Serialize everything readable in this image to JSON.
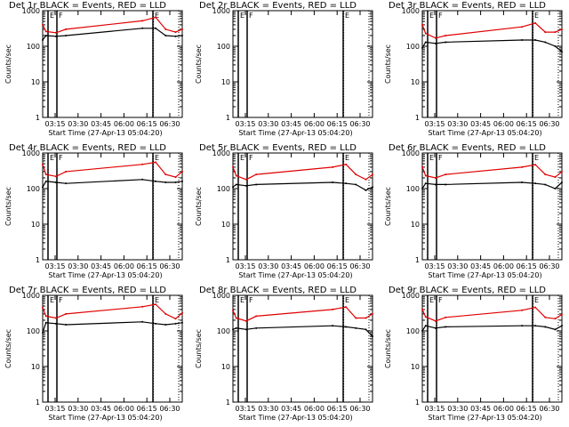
{
  "colors": {
    "events": "#000000",
    "lld": "#e00000",
    "background": "#ffffff",
    "axis": "#000000"
  },
  "chart_data": [
    {
      "type": "line",
      "title": "Det 1r BLACK = Events, RED = LLD",
      "xlabel": "Start Time (27-Apr-13 05:04:20)",
      "ylabel": "Counts/sec",
      "yscale": "log",
      "ylim": [
        1,
        1000
      ],
      "xlim": [
        "03:10",
        "06:40"
      ],
      "xticks": [
        "03:15",
        "03:30",
        "03:45",
        "06:00",
        "06:15",
        "06:30"
      ],
      "yticks": [
        "1",
        "10",
        "100",
        "1000"
      ],
      "grid": false,
      "markers": [
        "E",
        "F",
        "E"
      ],
      "x": [
        "03:10",
        "03:15",
        "03:30",
        "03:45",
        "05:40",
        "06:00",
        "06:15",
        "06:30",
        "06:40"
      ],
      "series": [
        {
          "name": "BLACK = Events",
          "values": [
            150,
            200,
            190,
            200,
            320,
            320,
            200,
            190,
            200
          ]
        },
        {
          "name": "RED = LLD",
          "values": [
            400,
            260,
            240,
            300,
            520,
            650,
            300,
            250,
            300
          ]
        }
      ]
    },
    {
      "type": "line",
      "title": "Det 2r BLACK = Events, RED = LLD",
      "xlabel": "Start Time (27-Apr-13 05:04:20)",
      "ylabel": "Counts/sec",
      "yscale": "log",
      "ylim": [
        1,
        1000
      ],
      "xlim": [
        "03:10",
        "06:40"
      ],
      "xticks": [
        "03:15",
        "03:30",
        "03:45",
        "06:00",
        "06:15",
        "06:30"
      ],
      "yticks": [
        "1",
        "10",
        "100",
        "1000"
      ],
      "grid": false,
      "markers": [
        "E",
        "F",
        "E"
      ],
      "x": [],
      "series": []
    },
    {
      "type": "line",
      "title": "Det 3r BLACK = Events, RED = LLD",
      "xlabel": "Start Time (27-Apr-13 05:04:20)",
      "ylabel": "Counts/sec",
      "yscale": "log",
      "ylim": [
        1,
        1000
      ],
      "xlim": [
        "03:10",
        "06:40"
      ],
      "xticks": [
        "03:15",
        "03:30",
        "03:45",
        "06:00",
        "06:15",
        "06:30"
      ],
      "yticks": [
        "1",
        "10",
        "100",
        "1000"
      ],
      "grid": false,
      "markers": [
        "E",
        "F",
        "E"
      ],
      "x": [
        "03:10",
        "03:15",
        "03:30",
        "03:45",
        "05:40",
        "06:00",
        "06:15",
        "06:30",
        "06:40"
      ],
      "series": [
        {
          "name": "BLACK = Events",
          "values": [
            90,
            130,
            120,
            130,
            150,
            150,
            130,
            100,
            70
          ]
        },
        {
          "name": "RED = LLD",
          "values": [
            400,
            230,
            170,
            200,
            350,
            450,
            250,
            250,
            300
          ]
        }
      ]
    },
    {
      "type": "line",
      "title": "Det 4r BLACK = Events, RED = LLD",
      "xlabel": "Start Time (27-Apr-13 05:04:20)",
      "ylabel": "Counts/sec",
      "yscale": "log",
      "ylim": [
        1,
        1000
      ],
      "xlim": [
        "03:10",
        "06:40"
      ],
      "xticks": [
        "03:15",
        "03:30",
        "03:45",
        "06:00",
        "06:15",
        "06:30"
      ],
      "yticks": [
        "1",
        "10",
        "100",
        "1000"
      ],
      "grid": false,
      "markers": [
        "E",
        "F",
        "E"
      ],
      "x": [
        "03:10",
        "03:15",
        "03:30",
        "03:45",
        "05:40",
        "06:00",
        "06:15",
        "06:30",
        "06:40"
      ],
      "series": [
        {
          "name": "BLACK = Events",
          "values": [
            110,
            160,
            150,
            140,
            180,
            160,
            150,
            150,
            160
          ]
        },
        {
          "name": "RED = LLD",
          "values": [
            480,
            250,
            220,
            300,
            480,
            550,
            250,
            210,
            300
          ]
        }
      ]
    },
    {
      "type": "line",
      "title": "Det 5r BLACK = Events, RED = LLD",
      "xlabel": "Start Time (27-Apr-13 05:04:20)",
      "ylabel": "Counts/sec",
      "yscale": "log",
      "ylim": [
        1,
        1000
      ],
      "xlim": [
        "03:10",
        "06:40"
      ],
      "xticks": [
        "03:15",
        "03:30",
        "03:45",
        "06:00",
        "06:15",
        "06:30"
      ],
      "yticks": [
        "1",
        "10",
        "100",
        "1000"
      ],
      "grid": false,
      "markers": [
        "E",
        "F",
        "E"
      ],
      "x": [
        "03:10",
        "03:15",
        "03:30",
        "03:45",
        "05:40",
        "06:00",
        "06:15",
        "06:30",
        "06:40"
      ],
      "series": [
        {
          "name": "BLACK = Events",
          "values": [
            110,
            130,
            120,
            130,
            150,
            140,
            130,
            90,
            110
          ]
        },
        {
          "name": "RED = LLD",
          "values": [
            400,
            230,
            180,
            250,
            400,
            480,
            250,
            180,
            250
          ]
        }
      ]
    },
    {
      "type": "line",
      "title": "Det 6r BLACK = Events, RED = LLD",
      "xlabel": "Start Time (27-Apr-13 05:04:20)",
      "ylabel": "Counts/sec",
      "yscale": "log",
      "ylim": [
        1,
        1000
      ],
      "xlim": [
        "03:10",
        "06:40"
      ],
      "xticks": [
        "03:15",
        "03:30",
        "03:45",
        "06:00",
        "06:15",
        "06:30"
      ],
      "yticks": [
        "1",
        "10",
        "100",
        "1000"
      ],
      "grid": false,
      "markers": [
        "E",
        "F",
        "E"
      ],
      "x": [
        "03:10",
        "03:15",
        "03:30",
        "03:45",
        "05:40",
        "06:00",
        "06:15",
        "06:30",
        "06:40"
      ],
      "series": [
        {
          "name": "BLACK = Events",
          "values": [
            100,
            140,
            130,
            130,
            150,
            140,
            130,
            100,
            150
          ]
        },
        {
          "name": "RED = LLD",
          "values": [
            400,
            230,
            200,
            250,
            400,
            470,
            250,
            210,
            300
          ]
        }
      ]
    },
    {
      "type": "line",
      "title": "Det 7r BLACK = Events, RED = LLD",
      "xlabel": "Start Time (27-Apr-13 05:04:20)",
      "ylabel": "Counts/sec",
      "yscale": "log",
      "ylim": [
        1,
        1000
      ],
      "xlim": [
        "03:10",
        "06:40"
      ],
      "xticks": [
        "03:15",
        "03:30",
        "03:45",
        "06:00",
        "06:15",
        "06:30"
      ],
      "yticks": [
        "1",
        "10",
        "100",
        "1000"
      ],
      "grid": false,
      "markers": [
        "E",
        "F",
        "E"
      ],
      "x": [
        "03:10",
        "03:15",
        "03:30",
        "03:45",
        "05:40",
        "06:00",
        "06:15",
        "06:30",
        "06:40"
      ],
      "series": [
        {
          "name": "BLACK = Events",
          "values": [
            90,
            170,
            160,
            150,
            180,
            160,
            150,
            160,
            170
          ]
        },
        {
          "name": "RED = LLD",
          "values": [
            450,
            260,
            230,
            300,
            480,
            560,
            300,
            220,
            320
          ]
        }
      ]
    },
    {
      "type": "line",
      "title": "Det 8r BLACK = Events, RED = LLD",
      "xlabel": "Start Time (27-Apr-13 05:04:20)",
      "ylabel": "Counts/sec",
      "yscale": "log",
      "ylim": [
        1,
        1000
      ],
      "xlim": [
        "03:10",
        "06:40"
      ],
      "xticks": [
        "03:15",
        "03:30",
        "03:45",
        "06:00",
        "06:15",
        "06:30"
      ],
      "yticks": [
        "1",
        "10",
        "100",
        "1000"
      ],
      "grid": false,
      "markers": [
        "E",
        "F",
        "E"
      ],
      "x": [
        "03:10",
        "03:15",
        "03:30",
        "03:45",
        "05:40",
        "06:00",
        "06:15",
        "06:30",
        "06:40"
      ],
      "series": [
        {
          "name": "BLACK = Events",
          "values": [
            110,
            120,
            110,
            120,
            140,
            130,
            120,
            110,
            70
          ]
        },
        {
          "name": "RED = LLD",
          "values": [
            380,
            230,
            190,
            260,
            400,
            470,
            230,
            230,
            300
          ]
        }
      ]
    },
    {
      "type": "line",
      "title": "Det 9r BLACK = Events, RED = LLD",
      "xlabel": "Start Time (27-Apr-13 05:04:20)",
      "ylabel": "Counts/sec",
      "yscale": "log",
      "ylim": [
        1,
        1000
      ],
      "xlim": [
        "03:10",
        "06:40"
      ],
      "xticks": [
        "03:15",
        "03:30",
        "03:45",
        "06:00",
        "06:15",
        "06:30"
      ],
      "yticks": [
        "1",
        "10",
        "100",
        "1000"
      ],
      "grid": false,
      "markers": [
        "E",
        "F",
        "E"
      ],
      "x": [
        "03:10",
        "03:15",
        "03:30",
        "03:45",
        "05:40",
        "06:00",
        "06:15",
        "06:30",
        "06:40"
      ],
      "series": [
        {
          "name": "BLACK = Events",
          "values": [
            100,
            140,
            120,
            130,
            140,
            140,
            130,
            110,
            140
          ]
        },
        {
          "name": "RED = LLD",
          "values": [
            400,
            250,
            190,
            240,
            380,
            460,
            240,
            220,
            290
          ]
        }
      ]
    }
  ]
}
